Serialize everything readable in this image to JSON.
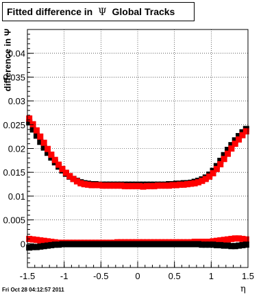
{
  "title": {
    "part1": "Fitted difference in",
    "symbol": "Ψ",
    "part2": "Global Tracks"
  },
  "timestamp": "Fri Oct 28 04:12:57 2011",
  "chart_data": {
    "type": "scatter",
    "xlabel": "η",
    "ylabel": "difference in Ψ",
    "xlim": [
      -1.5,
      1.5
    ],
    "ylim": [
      -0.005,
      0.045
    ],
    "grid": true,
    "x_ticks": [
      -1.5,
      -1,
      -0.5,
      0,
      0.5,
      1,
      1.5
    ],
    "x_tick_labels": [
      "-1.5",
      "-1",
      "-0.5",
      "0",
      "0.5",
      "1",
      "1.5"
    ],
    "y_ticks": [
      0,
      0.005,
      0.01,
      0.015,
      0.02,
      0.025,
      0.03,
      0.035,
      0.04
    ],
    "y_tick_labels": [
      "0",
      "0.005",
      "0.01",
      "0.015",
      "0.02",
      "0.025",
      "0.03",
      "0.035",
      "0.04"
    ],
    "series": [
      {
        "color": "#000000",
        "x": [
          -1.475,
          -1.425,
          -1.375,
          -1.325,
          -1.275,
          -1.225,
          -1.175,
          -1.125,
          -1.075,
          -1.025,
          -0.975,
          -0.925,
          -0.875,
          -0.825,
          -0.775,
          -0.725,
          -0.675,
          -0.625,
          -0.575,
          -0.525,
          -0.475,
          -0.425,
          -0.375,
          -0.325,
          -0.275,
          -0.225,
          -0.175,
          -0.125,
          -0.075,
          -0.025,
          0.025,
          0.075,
          0.125,
          0.175,
          0.225,
          0.275,
          0.325,
          0.375,
          0.425,
          0.475,
          0.525,
          0.575,
          0.625,
          0.675,
          0.725,
          0.775,
          0.825,
          0.875,
          0.925,
          0.975,
          1.025,
          1.075,
          1.125,
          1.175,
          1.225,
          1.275,
          1.325,
          1.375,
          1.425,
          1.475
        ],
        "y": [
          0.0255,
          0.024,
          0.0227,
          0.0214,
          0.0202,
          0.0191,
          0.0181,
          0.0171,
          0.0162,
          0.0154,
          0.0147,
          0.0141,
          0.0136,
          0.0132,
          0.0129,
          0.0127,
          0.0126,
          0.0125,
          0.0125,
          0.0124,
          0.0124,
          0.0124,
          0.0124,
          0.0124,
          0.0124,
          0.0124,
          0.0124,
          0.0124,
          0.0124,
          0.0124,
          0.0124,
          0.0124,
          0.0124,
          0.0124,
          0.0124,
          0.0124,
          0.0124,
          0.0124,
          0.0125,
          0.0125,
          0.0126,
          0.0126,
          0.0127,
          0.0127,
          0.0128,
          0.013,
          0.0132,
          0.0135,
          0.0139,
          0.0145,
          0.0153,
          0.0163,
          0.0174,
          0.0186,
          0.0197,
          0.0207,
          0.0217,
          0.0226,
          0.0234,
          0.0241
        ]
      },
      {
        "color": "#ff0000",
        "x": [
          -1.475,
          -1.425,
          -1.375,
          -1.325,
          -1.275,
          -1.225,
          -1.175,
          -1.125,
          -1.075,
          -1.025,
          -0.975,
          -0.925,
          -0.875,
          -0.825,
          -0.775,
          -0.725,
          -0.675,
          -0.625,
          -0.575,
          -0.525,
          -0.475,
          -0.425,
          -0.375,
          -0.325,
          -0.275,
          -0.225,
          -0.175,
          -0.125,
          -0.075,
          -0.025,
          0.025,
          0.075,
          0.125,
          0.175,
          0.225,
          0.275,
          0.325,
          0.375,
          0.425,
          0.475,
          0.525,
          0.575,
          0.625,
          0.675,
          0.725,
          0.775,
          0.825,
          0.875,
          0.925,
          0.975,
          1.025,
          1.075,
          1.125,
          1.175,
          1.225,
          1.275,
          1.325,
          1.375,
          1.425,
          1.475
        ],
        "y": [
          0.0263,
          0.0251,
          0.0238,
          0.0225,
          0.0212,
          0.0199,
          0.0187,
          0.0176,
          0.0166,
          0.0157,
          0.0149,
          0.0142,
          0.0136,
          0.0131,
          0.0127,
          0.0125,
          0.0124,
          0.0123,
          0.0123,
          0.0123,
          0.0122,
          0.0122,
          0.0122,
          0.0122,
          0.0122,
          0.0122,
          0.0121,
          0.0121,
          0.0121,
          0.0121,
          0.0121,
          0.012,
          0.0121,
          0.0121,
          0.0121,
          0.0122,
          0.0122,
          0.0122,
          0.0122,
          0.0123,
          0.0123,
          0.0124,
          0.0124,
          0.0125,
          0.0126,
          0.0127,
          0.0129,
          0.0132,
          0.0136,
          0.0141,
          0.0148,
          0.0157,
          0.0167,
          0.0178,
          0.0189,
          0.02,
          0.021,
          0.0219,
          0.0228,
          0.0236
        ]
      },
      {
        "color": "#ff0000",
        "x": [
          -1.475,
          -1.425,
          -1.375,
          -1.325,
          -1.275,
          -1.225,
          -1.175,
          -1.125,
          -1.075,
          -1.025,
          -0.975,
          -0.925,
          -0.875,
          -0.825,
          -0.775,
          -0.725,
          -0.675,
          -0.625,
          -0.575,
          -0.525,
          -0.475,
          -0.425,
          -0.375,
          -0.325,
          -0.275,
          -0.225,
          -0.175,
          -0.125,
          -0.075,
          -0.025,
          0.025,
          0.075,
          0.125,
          0.175,
          0.225,
          0.275,
          0.325,
          0.375,
          0.425,
          0.475,
          0.525,
          0.575,
          0.625,
          0.675,
          0.725,
          0.775,
          0.825,
          0.875,
          0.925,
          0.975,
          1.025,
          1.075,
          1.125,
          1.175,
          1.225,
          1.275,
          1.325,
          1.375,
          1.425,
          1.475
        ],
        "y": [
          0.001,
          0.0009,
          0.0008,
          0.0007,
          0.0006,
          0.0005,
          0.0004,
          0.0003,
          0.0002,
          0.0002,
          0.0002,
          0.0002,
          0.0002,
          0.0002,
          0.0002,
          0.0002,
          0.0002,
          0.0002,
          0.0002,
          0.0002,
          0.0002,
          0.0002,
          0.0002,
          0.0002,
          0.0003,
          0.0003,
          0.0003,
          0.0003,
          0.0003,
          0.0003,
          0.0003,
          0.0003,
          0.0003,
          0.0003,
          0.0003,
          0.0003,
          0.0003,
          0.0003,
          0.0003,
          0.0003,
          0.0003,
          0.0003,
          0.0003,
          0.0003,
          0.0003,
          0.0004,
          0.0004,
          0.0004,
          0.0004,
          0.0004,
          0.0005,
          0.0006,
          0.0007,
          0.0008,
          0.0009,
          0.001,
          0.0011,
          0.0011,
          0.001,
          0.0009
        ]
      },
      {
        "color": "#000000",
        "x": [
          -1.475,
          -1.425,
          -1.375,
          -1.325,
          -1.275,
          -1.225,
          -1.175,
          -1.125,
          -1.075,
          -1.025,
          -0.975,
          -0.925,
          -0.875,
          -0.825,
          -0.775,
          -0.725,
          -0.675,
          -0.625,
          -0.575,
          -0.525,
          -0.475,
          -0.425,
          -0.375,
          -0.325,
          -0.275,
          -0.225,
          -0.175,
          -0.125,
          -0.075,
          -0.025,
          0.025,
          0.075,
          0.125,
          0.175,
          0.225,
          0.275,
          0.325,
          0.375,
          0.425,
          0.475,
          0.525,
          0.575,
          0.625,
          0.675,
          0.725,
          0.775,
          0.825,
          0.875,
          0.925,
          0.975,
          1.025,
          1.075,
          1.125,
          1.175,
          1.225,
          1.275,
          1.325,
          1.375,
          1.425,
          1.475
        ],
        "y": [
          -0.0008,
          -0.0007,
          -0.0007,
          -0.0006,
          -0.0005,
          -0.0004,
          -0.0003,
          -0.0002,
          -0.0002,
          -0.0001,
          -0.0001,
          -0.0001,
          -0.0001,
          -0.0001,
          -0.0001,
          -0.0001,
          -0.0001,
          -0.0001,
          -0.0001,
          -0.0001,
          -0.0001,
          -0.0001,
          -0.0001,
          -0.0001,
          -0.0001,
          -0.0001,
          -0.0001,
          -0.0001,
          -0.0001,
          -0.0001,
          -0.0001,
          -0.0001,
          -0.0001,
          -0.0001,
          -0.0001,
          -0.0001,
          -0.0001,
          -0.0001,
          -0.0001,
          -0.0001,
          -0.0001,
          -0.0001,
          -0.0001,
          -0.0001,
          -0.0001,
          -0.0001,
          -0.0001,
          -0.0002,
          -0.0002,
          -0.0002,
          -0.0002,
          -0.0003,
          -0.0003,
          -0.0004,
          -0.0004,
          -0.0005,
          -0.0005,
          -0.0004,
          -0.0003,
          -0.0002
        ]
      }
    ]
  }
}
